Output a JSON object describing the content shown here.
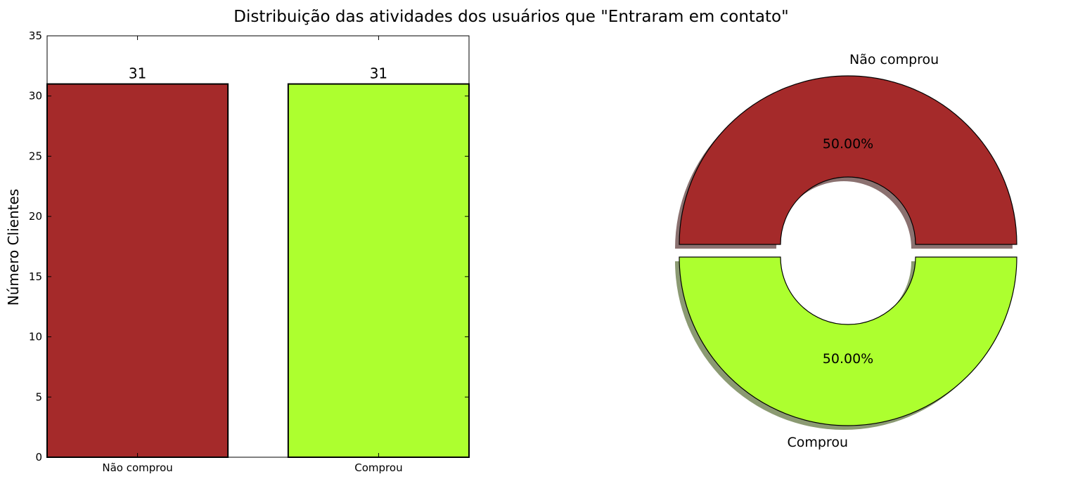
{
  "figure_title": "Distribuição das atividades dos usuários que \"Entraram em contato\"",
  "colors": {
    "nao_comprou": "#a52a2a",
    "comprou": "#adff2f"
  },
  "chart_data": [
    {
      "type": "bar",
      "categories": [
        "Não comprou",
        "Comprou"
      ],
      "values": [
        31,
        31
      ],
      "value_labels": [
        "31",
        "31"
      ],
      "xlabel": "",
      "ylabel": "Número Clientes",
      "ylim": [
        0,
        35
      ],
      "yticks": [
        "0",
        "5",
        "10",
        "15",
        "20",
        "25",
        "30",
        "35"
      ],
      "grid": false
    },
    {
      "type": "pie",
      "style": "donut",
      "exploded": true,
      "shadow": true,
      "labels": [
        "Não comprou",
        "Comprou"
      ],
      "values": [
        31,
        31
      ],
      "percent_labels": [
        "50.00%",
        "50.00%"
      ]
    }
  ]
}
